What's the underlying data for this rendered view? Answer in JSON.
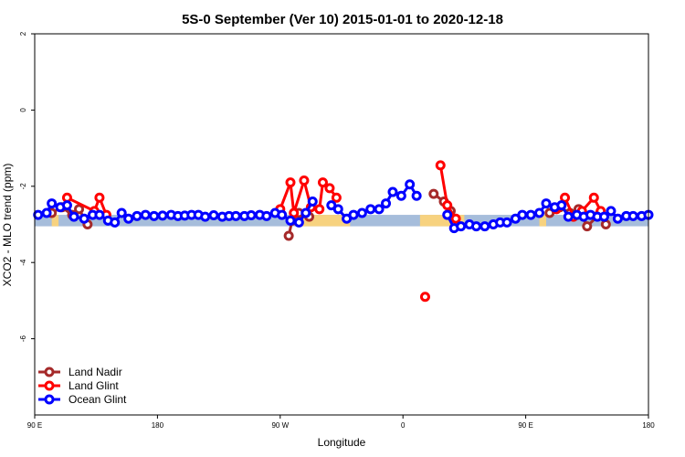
{
  "colors": {
    "land_nadir": "#a52a2a",
    "land_glint": "#ff0000",
    "ocean_glint": "#0000ff",
    "band_ocean": "#a6bddb",
    "band_land": "#f7d27f"
  },
  "chart_data": {
    "type": "line",
    "title": "5S-0 September (Ver 10)   2015-01-01 to 2020-12-18",
    "xlabel": "Longitude",
    "ylabel": "XCO2 - MLO trend (ppm)",
    "xlim": [
      0,
      360
    ],
    "ylim": [
      -8,
      2
    ],
    "x_ticks": [
      {
        "value": 0,
        "label": "90 E"
      },
      {
        "value": 72,
        "label": "180"
      },
      {
        "value": 144,
        "label": "90 W"
      },
      {
        "value": 216,
        "label": "0"
      },
      {
        "value": 288,
        "label": "90 E"
      },
      {
        "value": 360,
        "label": "180"
      }
    ],
    "y_ticks": [
      {
        "value": 2,
        "label": "2"
      },
      {
        "value": 0,
        "label": "0"
      },
      {
        "value": -2,
        "label": "-2"
      },
      {
        "value": -4,
        "label": "-4"
      },
      {
        "value": -6,
        "label": "-6"
      }
    ],
    "band": {
      "y_range": [
        -3.05,
        -2.75
      ],
      "land_segments": [
        [
          10,
          14
        ],
        [
          153,
          185
        ],
        [
          226,
          252
        ],
        [
          296,
          300
        ]
      ]
    },
    "legend": {
      "position": "bottom-left",
      "entries": [
        "Land Nadir",
        "Land Glint",
        "Ocean Glint"
      ]
    },
    "series": [
      {
        "name": "Land Nadir",
        "color_key": "land_nadir",
        "segments": [
          [
            [
              10,
              -2.7
            ],
            [
              16,
              -2.55
            ],
            [
              22,
              -2.75
            ],
            [
              26,
              -2.6
            ],
            [
              31,
              -3.0
            ]
          ],
          [
            [
              149,
              -3.3
            ],
            [
              151,
              -2.9
            ],
            [
              155,
              -2.7
            ],
            [
              161,
              -2.8
            ]
          ],
          [
            [
              234,
              -2.2
            ],
            [
              240,
              -2.4
            ],
            [
              244,
              -2.65
            ]
          ],
          [
            [
              302,
              -2.7
            ],
            [
              308,
              -2.55
            ],
            [
              314,
              -2.7
            ],
            [
              319,
              -2.6
            ],
            [
              324,
              -3.05
            ],
            [
              331,
              -2.75
            ],
            [
              335,
              -3.0
            ]
          ]
        ]
      },
      {
        "name": "Land Glint",
        "color_key": "land_glint",
        "segments": [
          [
            [
              19,
              -2.3
            ],
            [
              35,
              -2.65
            ],
            [
              38,
              -2.3
            ],
            [
              42,
              -2.75
            ]
          ],
          [
            [
              144,
              -2.6
            ],
            [
              150,
              -1.9
            ],
            [
              152,
              -2.7
            ],
            [
              158,
              -1.85
            ],
            [
              162,
              -2.55
            ],
            [
              167,
              -2.6
            ],
            [
              169,
              -1.9
            ],
            [
              173,
              -2.05
            ],
            [
              177,
              -2.3
            ]
          ],
          [
            [
              229,
              -4.9
            ]
          ],
          [
            [
              238,
              -1.45
            ],
            [
              242,
              -2.5
            ],
            [
              247,
              -2.85
            ]
          ],
          [
            [
              306,
              -2.6
            ],
            [
              311,
              -2.3
            ],
            [
              316,
              -2.8
            ],
            [
              321,
              -2.65
            ],
            [
              328,
              -2.3
            ],
            [
              332,
              -2.65
            ]
          ]
        ]
      },
      {
        "name": "Ocean Glint",
        "color_key": "ocean_glint",
        "segments": [
          [
            [
              2,
              -2.75
            ],
            [
              7,
              -2.7
            ],
            [
              10,
              -2.45
            ],
            [
              15,
              -2.55
            ],
            [
              19,
              -2.5
            ],
            [
              23,
              -2.8
            ],
            [
              29,
              -2.85
            ],
            [
              34,
              -2.75
            ],
            [
              38,
              -2.75
            ],
            [
              43,
              -2.9
            ],
            [
              47,
              -2.95
            ],
            [
              51,
              -2.7
            ],
            [
              55,
              -2.85
            ],
            [
              60,
              -2.78
            ],
            [
              65,
              -2.75
            ],
            [
              70,
              -2.78
            ],
            [
              75,
              -2.77
            ],
            [
              80,
              -2.75
            ],
            [
              84,
              -2.78
            ],
            [
              88,
              -2.77
            ],
            [
              92,
              -2.75
            ],
            [
              96,
              -2.75
            ],
            [
              100,
              -2.8
            ],
            [
              105,
              -2.76
            ],
            [
              110,
              -2.8
            ],
            [
              114,
              -2.78
            ],
            [
              118,
              -2.78
            ],
            [
              123,
              -2.78
            ],
            [
              127,
              -2.76
            ],
            [
              132,
              -2.75
            ],
            [
              136,
              -2.78
            ],
            [
              141,
              -2.7
            ],
            [
              145,
              -2.75
            ],
            [
              150,
              -2.9
            ],
            [
              155,
              -2.95
            ],
            [
              159,
              -2.7
            ],
            [
              163,
              -2.4
            ]
          ],
          [
            [
              174,
              -2.5
            ],
            [
              178,
              -2.6
            ],
            [
              183,
              -2.85
            ],
            [
              187,
              -2.75
            ],
            [
              192,
              -2.7
            ],
            [
              197,
              -2.6
            ],
            [
              202,
              -2.6
            ],
            [
              206,
              -2.45
            ],
            [
              210,
              -2.15
            ],
            [
              215,
              -2.25
            ],
            [
              220,
              -1.95
            ],
            [
              224,
              -2.25
            ]
          ],
          [
            [
              242,
              -2.75
            ],
            [
              246,
              -3.1
            ],
            [
              250,
              -3.05
            ],
            [
              255,
              -3.0
            ],
            [
              259,
              -3.05
            ],
            [
              264,
              -3.05
            ],
            [
              269,
              -3.0
            ],
            [
              273,
              -2.95
            ],
            [
              277,
              -2.95
            ],
            [
              282,
              -2.85
            ],
            [
              286,
              -2.75
            ],
            [
              291,
              -2.75
            ],
            [
              296,
              -2.7
            ],
            [
              300,
              -2.45
            ],
            [
              305,
              -2.55
            ],
            [
              309,
              -2.5
            ],
            [
              313,
              -2.8
            ],
            [
              318,
              -2.75
            ],
            [
              322,
              -2.8
            ],
            [
              326,
              -2.75
            ],
            [
              330,
              -2.8
            ],
            [
              334,
              -2.8
            ],
            [
              338,
              -2.65
            ],
            [
              342,
              -2.85
            ],
            [
              347,
              -2.78
            ],
            [
              351,
              -2.78
            ],
            [
              356,
              -2.78
            ],
            [
              360,
              -2.75
            ]
          ]
        ]
      }
    ]
  }
}
